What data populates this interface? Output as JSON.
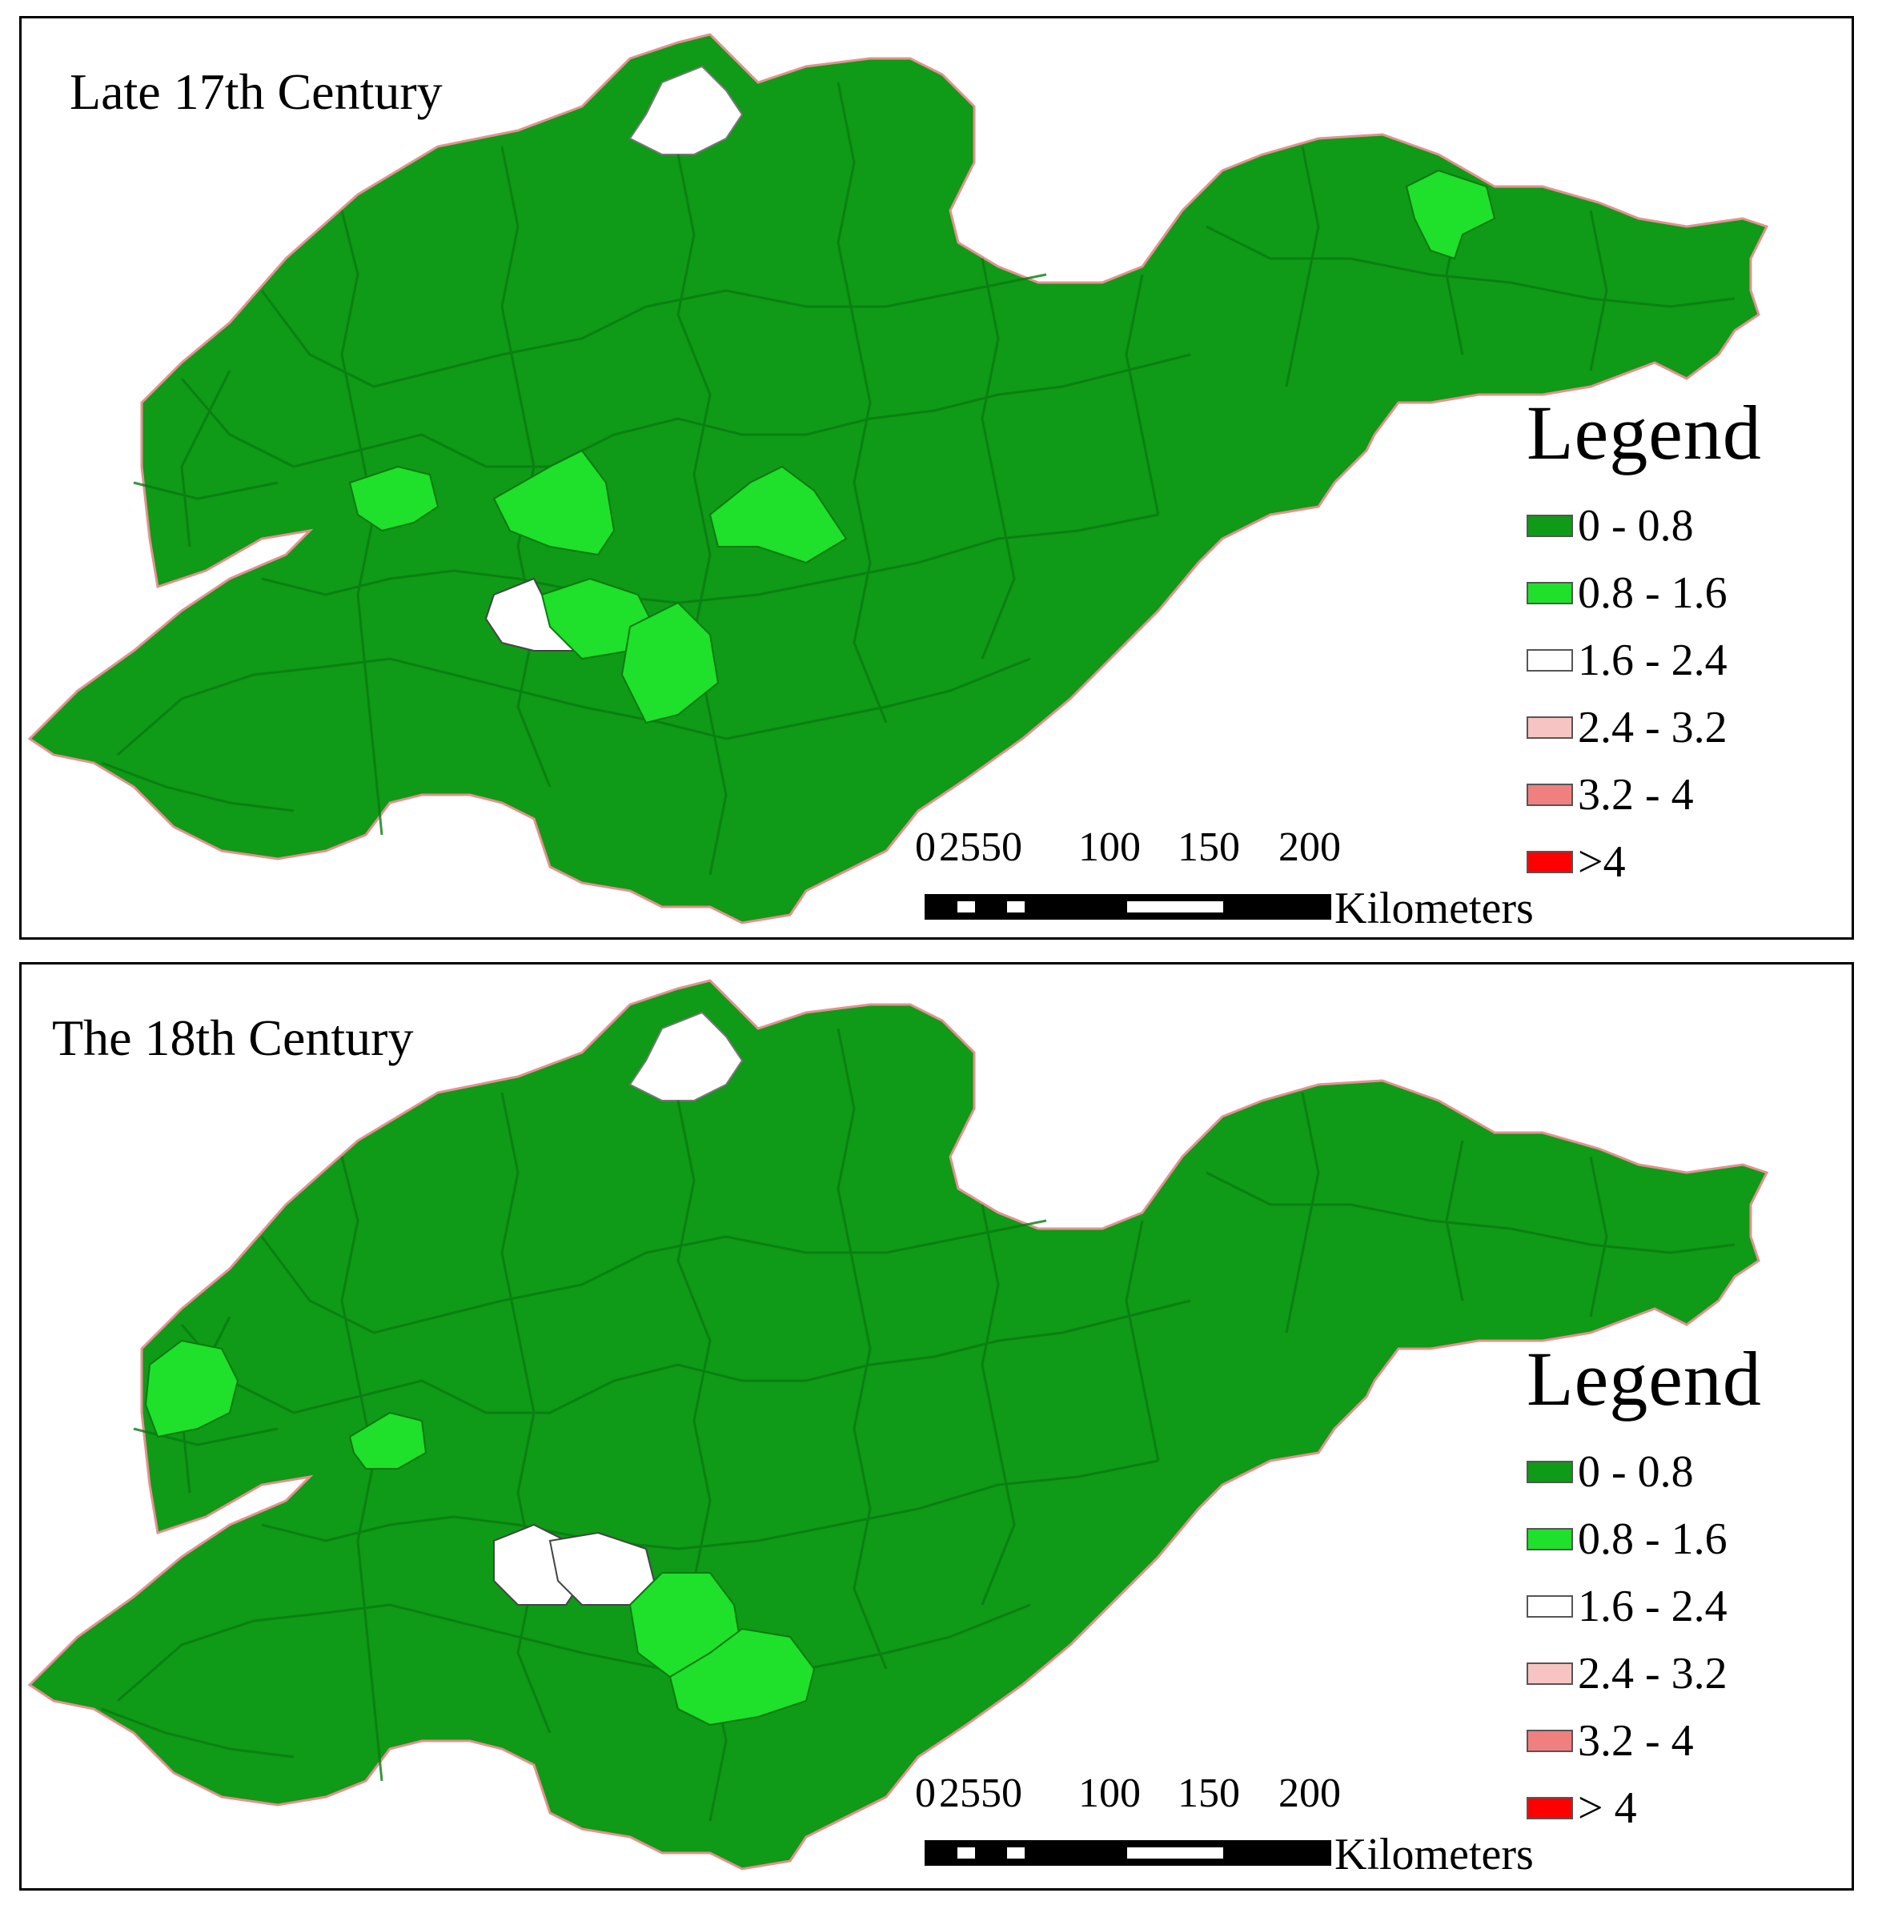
{
  "panels": [
    {
      "title": "Late 17th Century",
      "legend": {
        "title": "Legend",
        "items": [
          {
            "label": "0 - 0.8",
            "color": "#0f9a17"
          },
          {
            "label": "0.8 - 1.6",
            "color": "#1fe02a"
          },
          {
            "label": "1.6 - 2.4",
            "color": "#ffffff"
          },
          {
            "label": "2.4 - 3.2",
            "color": "#f7c4c4"
          },
          {
            "label": "3.2 - 4",
            "color": "#f08080"
          },
          {
            "label": ">4",
            "color": "#ff0000"
          }
        ]
      },
      "scale": {
        "ticks": [
          "0",
          "25",
          "50",
          "100",
          "150",
          "200"
        ],
        "unit": "Kilometers"
      }
    },
    {
      "title": "The 18th Century",
      "legend": {
        "title": "Legend",
        "items": [
          {
            "label": "0 - 0.8",
            "color": "#0f9a17"
          },
          {
            "label": "0.8 - 1.6",
            "color": "#1fe02a"
          },
          {
            "label": "1.6 - 2.4",
            "color": "#ffffff"
          },
          {
            "label": "2.4 - 3.2",
            "color": "#f7c4c4"
          },
          {
            "label": "3.2 - 4",
            "color": "#f08080"
          },
          {
            "label": "> 4",
            "color": "#ff0000"
          }
        ]
      },
      "scale": {
        "ticks": [
          "0",
          "25",
          "50",
          "100",
          "150",
          "200"
        ],
        "unit": "Kilometers"
      }
    }
  ]
}
